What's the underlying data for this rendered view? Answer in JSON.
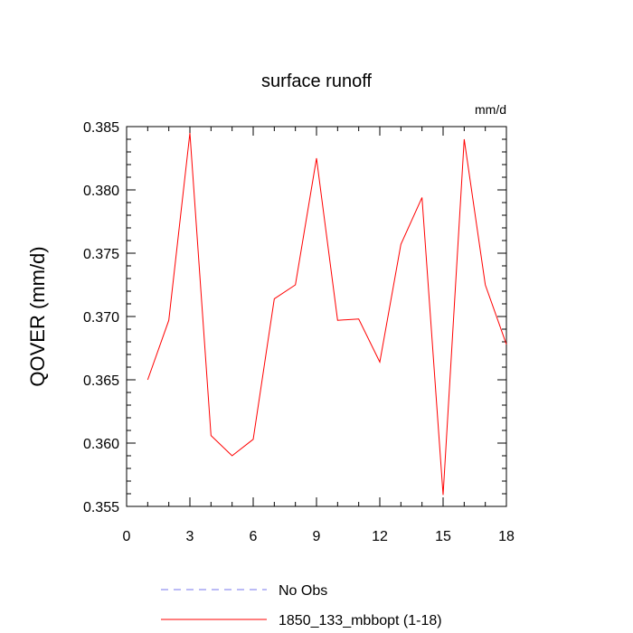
{
  "chart_data": {
    "type": "line",
    "title": "surface runoff",
    "units_label": "mm/d",
    "xlabel": "",
    "ylabel": "QOVER  (mm/d)",
    "xlim": [
      0,
      18
    ],
    "ylim": [
      0.355,
      0.385
    ],
    "x_ticks": [
      0,
      3,
      6,
      9,
      12,
      15,
      18
    ],
    "y_ticks": [
      "0.355",
      "0.360",
      "0.365",
      "0.370",
      "0.375",
      "0.380",
      "0.385"
    ],
    "grid": false,
    "legend_position": "bottom",
    "series": [
      {
        "name": "No Obs",
        "color": "#7777ee",
        "dash": true,
        "x": [],
        "values": []
      },
      {
        "name": "1850_133_mbbopt (1-18)",
        "color": "#ff0000",
        "dash": false,
        "x": [
          1,
          2,
          3,
          4,
          5,
          6,
          7,
          8,
          9,
          10,
          11,
          12,
          13,
          14,
          15,
          16,
          17,
          18
        ],
        "values": [
          0.365,
          0.3697,
          0.3845,
          0.3606,
          0.359,
          0.3603,
          0.3714,
          0.3725,
          0.3825,
          0.3697,
          0.3698,
          0.3664,
          0.3757,
          0.3794,
          0.3559,
          0.384,
          0.3725,
          0.3678
        ]
      }
    ]
  }
}
